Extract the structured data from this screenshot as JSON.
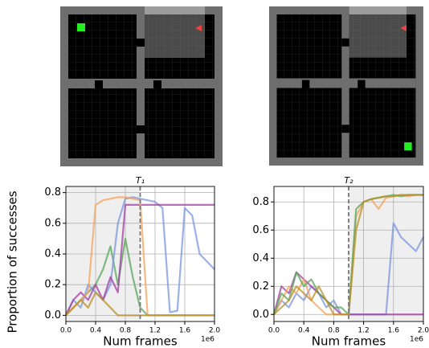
{
  "chart_data": [
    {
      "type": "line",
      "title": "T₁",
      "x_label": "Num frames",
      "y_label": "Proportion of successes",
      "x_offset_label": "1e6",
      "x": [
        0,
        0.1,
        0.2,
        0.3,
        0.4,
        0.5,
        0.6,
        0.7,
        0.8,
        0.9,
        1.0,
        1.1,
        1.2,
        1.3,
        1.4,
        1.5,
        1.6,
        1.7,
        1.8,
        1.9,
        2.0
      ],
      "xlim": [
        0,
        2.0
      ],
      "xticks": [
        {
          "value": 0,
          "label": "0.0"
        },
        0.4,
        0.8,
        1.2,
        1.6,
        {
          "value": 2,
          "label": "2.0"
        }
      ],
      "ylim": [
        -0.04,
        0.84
      ],
      "yticks": [
        {
          "value": 0,
          "label": "0.0"
        },
        0.2,
        0.4,
        0.6,
        0.8
      ],
      "grid": true,
      "shaded_xrange": [
        0,
        1.0
      ],
      "switch_x": 1.0,
      "series": [
        {
          "color": "#5aa55a",
          "values": [
            0,
            0.05,
            0.1,
            0.15,
            0.2,
            0.3,
            0.45,
            0.2,
            0.5,
            0.25,
            0.05,
            0,
            0,
            0,
            0,
            0,
            0,
            0,
            0,
            0,
            0
          ]
        },
        {
          "color": "#7b96e0",
          "values": [
            0,
            0.1,
            0.05,
            0.2,
            0.15,
            0.1,
            0.2,
            0.6,
            0.76,
            0.77,
            0.76,
            0.75,
            0.74,
            0.7,
            0.02,
            0.03,
            0.7,
            0.65,
            0.4,
            0.35,
            0.3
          ]
        },
        {
          "color": "#a040a0",
          "values": [
            0,
            0.1,
            0.15,
            0.1,
            0.2,
            0.1,
            0.25,
            0.15,
            0.72,
            0.72,
            0.72,
            0.72,
            0.72,
            0.72,
            0.72,
            0.72,
            0.72,
            0.72,
            0.72,
            0.72,
            0.72
          ]
        },
        {
          "color": "#f5a35a",
          "values": [
            0,
            0.05,
            0.1,
            0.15,
            0.72,
            0.75,
            0.76,
            0.77,
            0.77,
            0.76,
            0.75,
            0,
            0,
            0,
            0,
            0,
            0,
            0,
            0,
            0,
            0
          ]
        },
        {
          "color": "#b8902a",
          "values": [
            0,
            0.05,
            0.1,
            0.05,
            0.15,
            0.1,
            0.05,
            0,
            0,
            0,
            0,
            0,
            0,
            0,
            0,
            0,
            0,
            0,
            0,
            0,
            0
          ]
        }
      ]
    },
    {
      "type": "line",
      "title": "T₂",
      "x_label": "Num frames",
      "x_offset_label": "1e6",
      "x": [
        0,
        0.1,
        0.2,
        0.3,
        0.4,
        0.5,
        0.6,
        0.7,
        0.8,
        0.9,
        1.0,
        1.1,
        1.2,
        1.3,
        1.4,
        1.5,
        1.6,
        1.7,
        1.8,
        1.9,
        2.0
      ],
      "xlim": [
        0,
        2.0
      ],
      "xticks": [
        {
          "value": 0,
          "label": "0.0"
        },
        0.4,
        0.8,
        1.2,
        1.6,
        {
          "value": 2,
          "label": "2.0"
        }
      ],
      "ylim": [
        -0.05,
        0.91
      ],
      "yticks": [
        {
          "value": 0,
          "label": "0.0"
        },
        0.2,
        0.4,
        0.6,
        0.8
      ],
      "grid": true,
      "shaded_xrange": [
        1.0,
        2.0
      ],
      "switch_x": 1.0,
      "series": [
        {
          "color": "#7b96e0",
          "values": [
            0,
            0.1,
            0.05,
            0.15,
            0.1,
            0.2,
            0.15,
            0.05,
            0.1,
            0,
            0,
            0,
            0,
            0,
            0,
            0,
            0.65,
            0.55,
            0.5,
            0.45,
            0.55
          ]
        },
        {
          "color": "#a040a0",
          "values": [
            0,
            0.2,
            0.15,
            0.3,
            0.25,
            0.2,
            0.15,
            0.1,
            0.05,
            0,
            0,
            0,
            0,
            0,
            0,
            0,
            0,
            0,
            0,
            0,
            0
          ]
        },
        {
          "color": "#f5a35a",
          "values": [
            0,
            0.1,
            0.2,
            0.15,
            0.25,
            0.1,
            0.05,
            0,
            0,
            0,
            0,
            0.7,
            0.8,
            0.82,
            0.75,
            0.83,
            0.84,
            0.85,
            0.84,
            0.85,
            0.85
          ]
        },
        {
          "color": "#5aa55a",
          "values": [
            0,
            0.15,
            0.1,
            0.3,
            0.2,
            0.25,
            0.15,
            0.1,
            0.05,
            0.05,
            0,
            0.75,
            0.8,
            0.82,
            0.83,
            0.84,
            0.85,
            0.84,
            0.85,
            0.85,
            0.85
          ]
        },
        {
          "color": "#b8902a",
          "values": [
            0,
            0.05,
            0.1,
            0.2,
            0.15,
            0.1,
            0.2,
            0.1,
            0,
            0,
            0,
            0.6,
            0.8,
            0.82,
            0.83,
            0.84,
            0.84,
            0.85,
            0.85,
            0.85,
            0.85
          ]
        }
      ]
    }
  ]
}
